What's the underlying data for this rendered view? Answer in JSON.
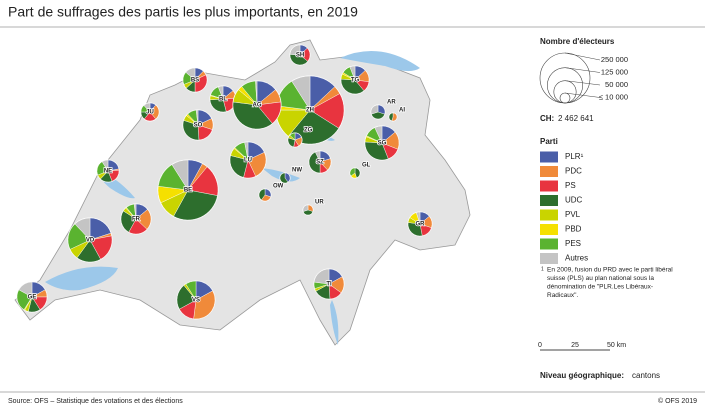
{
  "header": {
    "title": "Part de suffrages des partis les plus importants, en 2019"
  },
  "parties": [
    {
      "name": "PLR¹",
      "color": "#4a5ea8"
    },
    {
      "name": "PDC",
      "color": "#f08a3a"
    },
    {
      "name": "PS",
      "color": "#e8343f"
    },
    {
      "name": "UDC",
      "color": "#2d6e2d"
    },
    {
      "name": "PVL",
      "color": "#c9d400"
    },
    {
      "name": "PBD",
      "color": "#f5e000"
    },
    {
      "name": "PES",
      "color": "#5ab330"
    },
    {
      "name": "Autres",
      "color": "#c4c4c4"
    }
  ],
  "cantons": [
    {
      "code": "ZH",
      "voters": 462400,
      "shares": [
        13,
        4,
        17,
        27,
        14,
        2,
        14,
        9
      ]
    },
    {
      "code": "BE",
      "voters": 360000,
      "shares": [
        8,
        3,
        17,
        30,
        10,
        9,
        14,
        9
      ]
    },
    {
      "code": "LU",
      "voters": 129600,
      "shares": [
        18,
        25,
        11,
        25,
        7,
        1,
        10,
        3
      ]
    },
    {
      "code": "UR",
      "voters": 10000,
      "shares": [
        0,
        30,
        0,
        40,
        0,
        0,
        0,
        30
      ]
    },
    {
      "code": "SZ",
      "voters": 48400,
      "shares": [
        20,
        18,
        12,
        43,
        0,
        0,
        0,
        7
      ]
    },
    {
      "code": "OW",
      "voters": 14400,
      "shares": [
        30,
        30,
        0,
        40,
        0,
        0,
        0,
        0
      ]
    },
    {
      "code": "NW",
      "voters": 10000,
      "shares": [
        40,
        0,
        0,
        60,
        0,
        0,
        0,
        0
      ]
    },
    {
      "code": "GL",
      "voters": 10000,
      "shares": [
        0,
        0,
        0,
        45,
        0,
        20,
        35,
        0
      ]
    },
    {
      "code": "ZG",
      "voters": 19600,
      "shares": [
        19,
        22,
        12,
        27,
        7,
        0,
        13,
        0
      ]
    },
    {
      "code": "FR",
      "voters": 90000,
      "shares": [
        14,
        23,
        21,
        26,
        4,
        1,
        9,
        2
      ]
    },
    {
      "code": "SO",
      "voters": 90000,
      "shares": [
        18,
        12,
        19,
        31,
        6,
        2,
        10,
        2
      ]
    },
    {
      "code": "BS",
      "voters": 57600,
      "shares": [
        12,
        6,
        32,
        13,
        6,
        0,
        17,
        14
      ]
    },
    {
      "code": "BL",
      "voters": 67600,
      "shares": [
        14,
        10,
        22,
        28,
        5,
        1,
        14,
        6
      ]
    },
    {
      "code": "SH",
      "voters": 40000,
      "shares": [
        13,
        0,
        23,
        40,
        0,
        0,
        0,
        24
      ]
    },
    {
      "code": "AR",
      "voters": 19600,
      "shares": [
        30,
        0,
        0,
        40,
        0,
        0,
        0,
        30
      ]
    },
    {
      "code": "AI",
      "voters": 6400,
      "shares": [
        0,
        55,
        0,
        45,
        0,
        0,
        0,
        0
      ]
    },
    {
      "code": "SG",
      "voters": 115600,
      "shares": [
        14,
        17,
        13,
        32,
        5,
        1,
        11,
        7
      ]
    },
    {
      "code": "GR",
      "voters": 57600,
      "shares": [
        14,
        16,
        17,
        30,
        7,
        11,
        0,
        5
      ]
    },
    {
      "code": "AG",
      "voters": 230400,
      "shares": [
        14,
        9,
        16,
        38,
        9,
        3,
        10,
        1
      ]
    },
    {
      "code": "TG",
      "voters": 78400,
      "shares": [
        13,
        14,
        12,
        37,
        6,
        2,
        10,
        6
      ]
    },
    {
      "code": "TI",
      "voters": 90000,
      "shares": [
        17,
        18,
        14,
        18,
        3,
        0,
        7,
        23
      ]
    },
    {
      "code": "VD",
      "voters": 193600,
      "shares": [
        20,
        2,
        20,
        18,
        8,
        0,
        20,
        12
      ]
    },
    {
      "code": "VS",
      "voters": 144400,
      "shares": [
        17,
        35,
        15,
        22,
        2,
        0,
        9,
        0
      ]
    },
    {
      "code": "NE",
      "voters": 48400,
      "shares": [
        22,
        2,
        20,
        18,
        7,
        0,
        22,
        9
      ]
    },
    {
      "code": "GE",
      "voters": 90000,
      "shares": [
        17,
        8,
        16,
        13,
        4,
        1,
        24,
        17
      ]
    },
    {
      "code": "JU",
      "voters": 32400,
      "shares": [
        11,
        28,
        22,
        14,
        0,
        0,
        13,
        12
      ]
    }
  ],
  "size_legend": {
    "title": "Nombre d'électeurs",
    "circles": [
      {
        "value": 250000,
        "label": "250 000"
      },
      {
        "value": 125000,
        "label": "125 000"
      },
      {
        "value": 50000,
        "label": "50 000"
      },
      {
        "value": 10000,
        "label": "≤ 10 000"
      }
    ],
    "ch_label": "CH:",
    "ch_total": {
      "value": 2462641,
      "label": "2 462 641"
    }
  },
  "party_legend": {
    "title": "Parti"
  },
  "footnote": {
    "mark": "1",
    "lines": [
      "En 2009, fusion du PRD avec le parti libéral",
      "suisse (PLS) au plan national sous la",
      "dénomination de \"PLR.Les Libéraux-",
      "Radicaux\"."
    ]
  },
  "scale_bar": {
    "labels": [
      "0",
      "25",
      "50 km"
    ]
  },
  "level": {
    "label": "Niveau géographique:",
    "value": "cantons"
  },
  "footer": {
    "source": "Source: OFS – Statistique des votations et des élections",
    "copyright": "© OFS 2019"
  }
}
